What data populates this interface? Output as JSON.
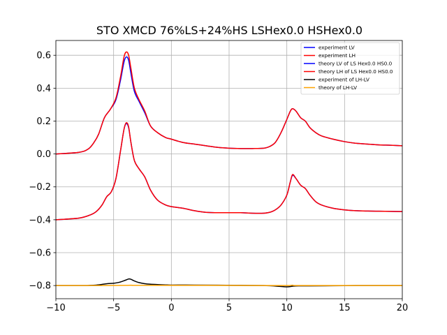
{
  "chart_data": {
    "type": "line",
    "title": "STO XMCD 76%LS+24%HS LSHex0.0 HSHex0.0",
    "xlabel": "",
    "ylabel": "",
    "xlim": [
      -10,
      20
    ],
    "ylim": [
      -0.88,
      0.69
    ],
    "xticks": [
      -10,
      -5,
      0,
      5,
      10,
      15,
      20
    ],
    "xtick_labels": [
      "−10",
      "−5",
      "0",
      "5",
      "10",
      "15",
      "20"
    ],
    "yticks": [
      -0.8,
      -0.6,
      -0.4,
      -0.2,
      0.0,
      0.2,
      0.4,
      0.6
    ],
    "ytick_labels": [
      "−0.8",
      "−0.6",
      "−0.4",
      "−0.2",
      "0.0",
      "0.2",
      "0.4",
      "0.6"
    ],
    "grid": true,
    "legend_position": "top-right",
    "series": [
      {
        "name": "experiment LV",
        "color": "#0000ff",
        "x": [
          -10,
          -8,
          -7.2,
          -6.7,
          -6.3,
          -5.8,
          -5.3,
          -4.8,
          -4.4,
          -4.1,
          -3.9,
          -3.7,
          -3.5,
          -3.2,
          -2.8,
          -2.3,
          -1.8,
          -1.2,
          -0.5,
          0,
          1,
          2,
          3,
          4,
          5,
          6,
          7,
          8,
          8.5,
          9,
          9.5,
          10,
          10.3,
          10.5,
          10.8,
          11.2,
          11.6,
          12,
          12.5,
          13,
          14,
          15,
          16,
          17,
          18,
          19,
          20
        ],
        "y": [
          0.0,
          0.01,
          0.03,
          0.07,
          0.12,
          0.22,
          0.27,
          0.33,
          0.45,
          0.56,
          0.59,
          0.57,
          0.49,
          0.38,
          0.32,
          0.25,
          0.17,
          0.13,
          0.1,
          0.09,
          0.07,
          0.06,
          0.05,
          0.04,
          0.035,
          0.033,
          0.033,
          0.035,
          0.045,
          0.07,
          0.13,
          0.21,
          0.26,
          0.275,
          0.26,
          0.22,
          0.2,
          0.16,
          0.13,
          0.11,
          0.09,
          0.075,
          0.065,
          0.06,
          0.055,
          0.053,
          0.05
        ]
      },
      {
        "name": "experiment LH",
        "color": "#ff0000",
        "x": [
          -10,
          -8,
          -7.2,
          -6.7,
          -6.3,
          -5.8,
          -5.3,
          -4.8,
          -4.4,
          -4.1,
          -3.9,
          -3.7,
          -3.5,
          -3.2,
          -2.8,
          -2.3,
          -1.8,
          -1.2,
          -0.5,
          0,
          1,
          2,
          3,
          4,
          5,
          6,
          7,
          8,
          8.5,
          9,
          9.5,
          10,
          10.3,
          10.5,
          10.8,
          11.2,
          11.6,
          12,
          12.5,
          13,
          14,
          15,
          16,
          17,
          18,
          19,
          20
        ],
        "y": [
          0.0,
          0.01,
          0.03,
          0.07,
          0.12,
          0.22,
          0.27,
          0.34,
          0.47,
          0.59,
          0.62,
          0.6,
          0.52,
          0.4,
          0.33,
          0.26,
          0.17,
          0.13,
          0.1,
          0.09,
          0.07,
          0.06,
          0.05,
          0.04,
          0.035,
          0.033,
          0.033,
          0.035,
          0.045,
          0.07,
          0.13,
          0.21,
          0.26,
          0.275,
          0.26,
          0.22,
          0.2,
          0.16,
          0.13,
          0.11,
          0.09,
          0.075,
          0.065,
          0.06,
          0.055,
          0.053,
          0.05
        ]
      },
      {
        "name": "theory LV of LS Hex0.0 HS0.0",
        "color": "#0000ff",
        "x": [
          -10,
          -8,
          -7,
          -6.5,
          -6,
          -5.6,
          -5.2,
          -4.8,
          -4.4,
          -4.1,
          -3.9,
          -3.7,
          -3.5,
          -3.2,
          -2.8,
          -2.3,
          -1.8,
          -1.2,
          -0.5,
          0,
          1,
          2,
          3,
          4,
          5,
          6,
          7,
          8,
          8.5,
          9,
          9.5,
          10,
          10.3,
          10.5,
          10.8,
          11.2,
          11.6,
          12,
          12.5,
          13,
          14,
          15,
          16,
          17,
          18,
          19,
          20
        ],
        "y": [
          -0.4,
          -0.39,
          -0.37,
          -0.35,
          -0.31,
          -0.26,
          -0.23,
          -0.15,
          0.02,
          0.15,
          0.185,
          0.16,
          0.07,
          -0.04,
          -0.09,
          -0.14,
          -0.22,
          -0.28,
          -0.31,
          -0.32,
          -0.33,
          -0.345,
          -0.355,
          -0.357,
          -0.357,
          -0.357,
          -0.36,
          -0.36,
          -0.355,
          -0.34,
          -0.31,
          -0.25,
          -0.17,
          -0.13,
          -0.15,
          -0.19,
          -0.21,
          -0.25,
          -0.29,
          -0.31,
          -0.33,
          -0.34,
          -0.345,
          -0.347,
          -0.348,
          -0.349,
          -0.35
        ]
      },
      {
        "name": "theory LH of LS Hex0.0 HS0.0",
        "color": "#ff0000",
        "x": [
          -10,
          -8,
          -7,
          -6.5,
          -6,
          -5.6,
          -5.2,
          -4.8,
          -4.4,
          -4.1,
          -3.9,
          -3.7,
          -3.5,
          -3.2,
          -2.8,
          -2.3,
          -1.8,
          -1.2,
          -0.5,
          0,
          1,
          2,
          3,
          4,
          5,
          6,
          7,
          8,
          8.5,
          9,
          9.5,
          10,
          10.3,
          10.5,
          10.8,
          11.2,
          11.6,
          12,
          12.5,
          13,
          14,
          15,
          16,
          17,
          18,
          19,
          20
        ],
        "y": [
          -0.4,
          -0.39,
          -0.37,
          -0.35,
          -0.31,
          -0.26,
          -0.23,
          -0.15,
          0.02,
          0.15,
          0.19,
          0.165,
          0.07,
          -0.04,
          -0.09,
          -0.14,
          -0.22,
          -0.28,
          -0.31,
          -0.32,
          -0.33,
          -0.345,
          -0.355,
          -0.357,
          -0.357,
          -0.357,
          -0.36,
          -0.36,
          -0.355,
          -0.34,
          -0.31,
          -0.25,
          -0.17,
          -0.125,
          -0.15,
          -0.19,
          -0.21,
          -0.25,
          -0.29,
          -0.31,
          -0.33,
          -0.34,
          -0.345,
          -0.347,
          -0.348,
          -0.349,
          -0.35
        ]
      },
      {
        "name": "experiment of LH-LV",
        "color": "#000000",
        "x": [
          -10,
          -8,
          -7,
          -6.5,
          -6,
          -5.5,
          -5,
          -4.5,
          -4,
          -3.7,
          -3.5,
          -3.2,
          -2.8,
          -2.3,
          -1.8,
          -1.2,
          -0.5,
          0,
          2,
          4,
          6,
          8,
          9,
          10,
          10.5,
          11,
          12,
          14,
          16,
          18,
          20
        ],
        "y": [
          -0.8,
          -0.8,
          -0.799,
          -0.797,
          -0.793,
          -0.788,
          -0.786,
          -0.78,
          -0.768,
          -0.76,
          -0.762,
          -0.772,
          -0.782,
          -0.789,
          -0.792,
          -0.794,
          -0.796,
          -0.797,
          -0.797,
          -0.798,
          -0.799,
          -0.8,
          -0.803,
          -0.808,
          -0.804,
          -0.802,
          -0.802,
          -0.801,
          -0.8,
          -0.8,
          -0.8
        ]
      },
      {
        "name": "theory of LH-LV",
        "color": "#ffa500",
        "x": [
          -10,
          -6,
          -4,
          -3.5,
          -3,
          0,
          3,
          8,
          10,
          10.5,
          11,
          15,
          20
        ],
        "y": [
          -0.8,
          -0.8,
          -0.799,
          -0.798,
          -0.799,
          -0.799,
          -0.799,
          -0.8,
          -0.8,
          -0.798,
          -0.8,
          -0.8,
          -0.8
        ]
      }
    ]
  }
}
